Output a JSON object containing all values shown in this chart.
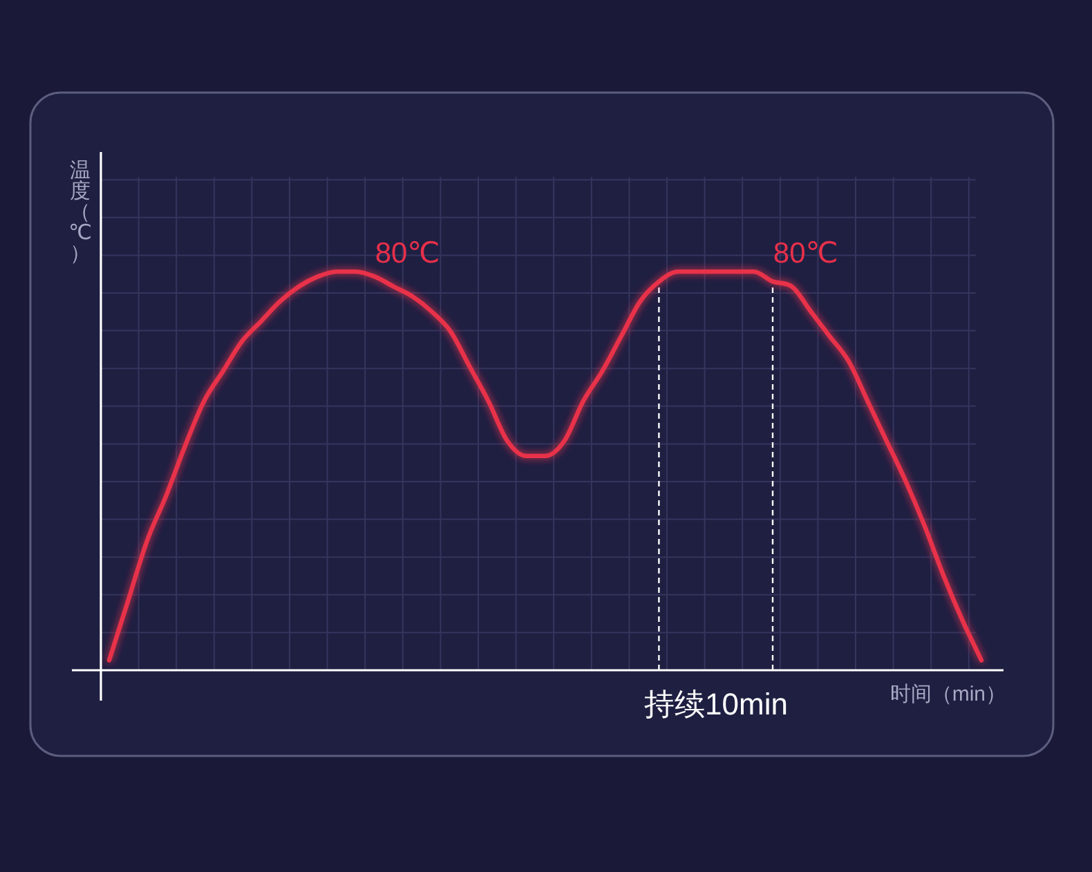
{
  "chart_data": {
    "type": "line",
    "grid": true,
    "ylim": [
      0,
      104
    ],
    "xlabel": "时间（min）",
    "ylabel": "温度（℃）",
    "categories": [
      null,
      null,
      null,
      null,
      null,
      null,
      null,
      null,
      null,
      null,
      null,
      null,
      null,
      null,
      null,
      null,
      null,
      null,
      null,
      null,
      null,
      null,
      null,
      null,
      null,
      null,
      null,
      null,
      null,
      null,
      null,
      null,
      null,
      null,
      null,
      null,
      null,
      null,
      null,
      null,
      null,
      null,
      null,
      null,
      null,
      null,
      null
    ],
    "series": [
      {
        "color": "#e8304a",
        "values": [
          2,
          14,
          26,
          35,
          45,
          54,
          60,
          66,
          70,
          74,
          77,
          79,
          80,
          80,
          79,
          77,
          75,
          72,
          68,
          61,
          54,
          46,
          43,
          43,
          46,
          54,
          60,
          67,
          74,
          78,
          80,
          80,
          80,
          80,
          80,
          78,
          77,
          72,
          67,
          62,
          54,
          46,
          38,
          29,
          19,
          10,
          2
        ],
        "value_labels": [
          null,
          null,
          null,
          null,
          null,
          null,
          null,
          null,
          null,
          null,
          null,
          null,
          null,
          "80℃",
          null,
          null,
          null,
          null,
          null,
          null,
          null,
          null,
          null,
          null,
          null,
          null,
          null,
          null,
          null,
          null,
          null,
          null,
          null,
          null,
          "80℃",
          null,
          null,
          null,
          null,
          null,
          null,
          null,
          null,
          null,
          null,
          null,
          null
        ]
      }
    ],
    "annotations": [
      "持续10min"
    ]
  }
}
